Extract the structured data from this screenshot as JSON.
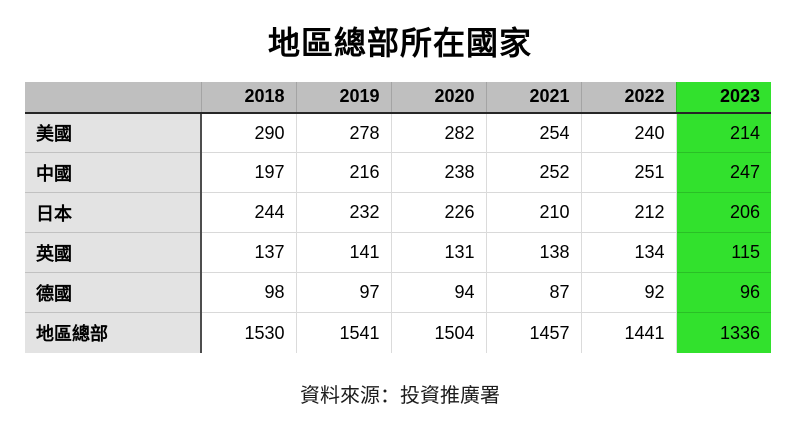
{
  "title": "地區總部所在國家",
  "source_note": "資料來源：投資推廣署",
  "table": {
    "corner_label": "",
    "column_headers": [
      "2018",
      "2019",
      "2020",
      "2021",
      "2022",
      "2023"
    ],
    "highlighted_column": "2023",
    "rows": [
      {
        "label": "美國",
        "values": [
          "290",
          "278",
          "282",
          "254",
          "240",
          "214"
        ]
      },
      {
        "label": "中國",
        "values": [
          "197",
          "216",
          "238",
          "252",
          "251",
          "247"
        ]
      },
      {
        "label": "日本",
        "values": [
          "244",
          "232",
          "226",
          "210",
          "212",
          "206"
        ]
      },
      {
        "label": "英國",
        "values": [
          "137",
          "141",
          "131",
          "138",
          "134",
          "115"
        ]
      },
      {
        "label": "德國",
        "values": [
          "98",
          "97",
          "94",
          "87",
          "92",
          "96"
        ]
      },
      {
        "label": "地區總部",
        "values": [
          "1530",
          "1541",
          "1504",
          "1457",
          "1441",
          "1336"
        ]
      }
    ]
  },
  "colors": {
    "highlight_green": "#32e12d",
    "header_gray": "#bfbfbf",
    "row_label_gray": "#e3e3e3"
  },
  "chart_data": {
    "type": "table",
    "title": "地區總部所在國家",
    "categories": [
      "2018",
      "2019",
      "2020",
      "2021",
      "2022",
      "2023"
    ],
    "series": [
      {
        "name": "美國",
        "values": [
          290,
          278,
          282,
          254,
          240,
          214
        ]
      },
      {
        "name": "中國",
        "values": [
          197,
          216,
          238,
          252,
          251,
          247
        ]
      },
      {
        "name": "日本",
        "values": [
          244,
          232,
          226,
          210,
          212,
          206
        ]
      },
      {
        "name": "英國",
        "values": [
          137,
          141,
          131,
          138,
          134,
          115
        ]
      },
      {
        "name": "德國",
        "values": [
          98,
          97,
          94,
          87,
          92,
          96
        ]
      },
      {
        "name": "地區總部",
        "values": [
          1530,
          1541,
          1504,
          1457,
          1441,
          1336
        ]
      }
    ],
    "highlight_column": "2023",
    "source": "資料來源：投資推廣署",
    "legend_position": "none",
    "grid": false
  }
}
